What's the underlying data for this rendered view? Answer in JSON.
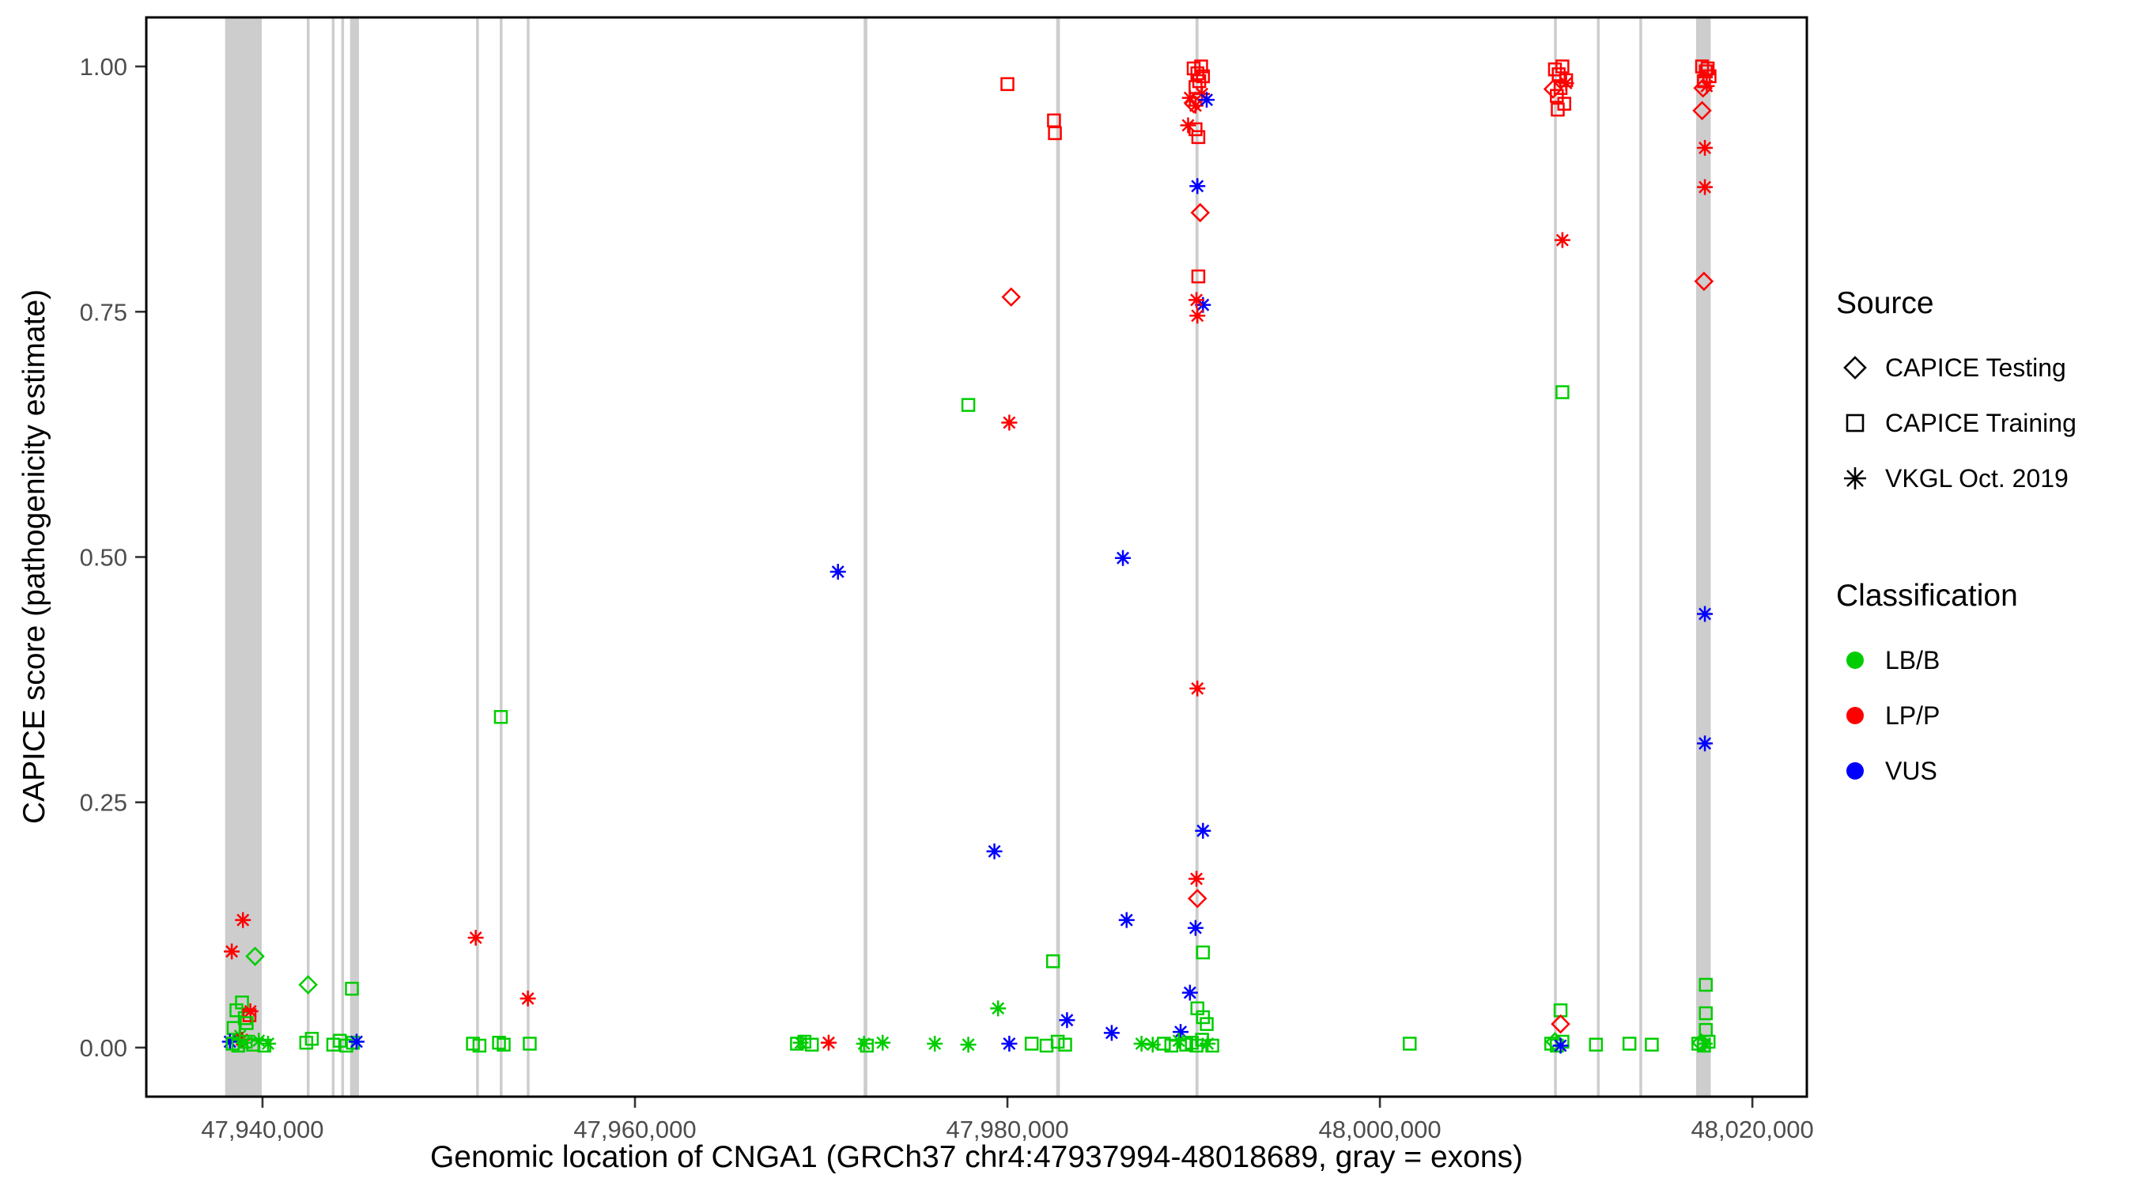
{
  "legend": {
    "source_title": "Source",
    "source_items": [
      {
        "label": "CAPICE Testing",
        "marker": "diamond"
      },
      {
        "label": "CAPICE Training",
        "marker": "square"
      },
      {
        "label": "VKGL Oct. 2019",
        "marker": "asterisk"
      }
    ],
    "classification_title": "Classification",
    "classification_items": [
      {
        "label": "LB/B",
        "color": "#00CD00"
      },
      {
        "label": "LP/P",
        "color": "#FF0000"
      },
      {
        "label": "VUS",
        "color": "#0000FF"
      }
    ]
  },
  "chart_data": {
    "type": "scatter",
    "xlabel": "Genomic location of CNGA1 (GRCh37 chr4:47937994-48018689, gray = exons)",
    "ylabel": "CAPICE score (pathogenicity estimate)",
    "xlim": [
      47933760,
      48022925
    ],
    "ylim": [
      -0.05,
      1.05
    ],
    "grid": false,
    "legend_position": "right",
    "x_ticks": [
      {
        "value": 47940000,
        "label": "47,940,000"
      },
      {
        "value": 47960000,
        "label": "47,960,000"
      },
      {
        "value": 47980000,
        "label": "47,980,000"
      },
      {
        "value": 48000000,
        "label": "48,000,000"
      },
      {
        "value": 48020000,
        "label": "48,020,000"
      }
    ],
    "y_ticks": [
      {
        "value": 0.0,
        "label": "0.00"
      },
      {
        "value": 0.25,
        "label": "0.25"
      },
      {
        "value": 0.5,
        "label": "0.50"
      },
      {
        "value": 0.75,
        "label": "0.75"
      },
      {
        "value": 1.0,
        "label": "1.00"
      }
    ],
    "exon_color": "#CDCDCD",
    "exons": [
      [
        47937994,
        47939960
      ],
      [
        47942380,
        47942530
      ],
      [
        47943720,
        47943870
      ],
      [
        47944230,
        47944380
      ],
      [
        47944700,
        47945180
      ],
      [
        47951470,
        47951620
      ],
      [
        47952740,
        47952890
      ],
      [
        47954190,
        47954340
      ],
      [
        47972280,
        47972480
      ],
      [
        47982620,
        47982820
      ],
      [
        47990100,
        47990260
      ],
      [
        48009350,
        48009500
      ],
      [
        48011650,
        48011800
      ],
      [
        48013930,
        48014080
      ],
      [
        48016980,
        48017760
      ]
    ],
    "classification_colors": {
      "LB/B": "#00CD00",
      "LP/P": "#FF0000",
      "VUS": "#0000FF"
    },
    "source_markers": {
      "test": "diamond",
      "train": "square",
      "vkgl": "asterisk"
    },
    "source_labels": {
      "test": "CAPICE Testing",
      "train": "CAPICE Training",
      "vkgl": "VKGL Oct. 2019"
    },
    "points": [
      [
        47938950,
        0.13,
        "vkgl",
        "LP/P"
      ],
      [
        47938350,
        0.098,
        "vkgl",
        "LP/P"
      ],
      [
        47939600,
        0.093,
        "test",
        "LB/B"
      ],
      [
        47942450,
        0.064,
        "test",
        "LB/B"
      ],
      [
        47944800,
        0.06,
        "train",
        "LB/B"
      ],
      [
        47938900,
        0.046,
        "train",
        "LB/B"
      ],
      [
        47938600,
        0.038,
        "train",
        "LB/B"
      ],
      [
        47939050,
        0.03,
        "train",
        "LB/B"
      ],
      [
        47939350,
        0.037,
        "vkgl",
        "LP/P"
      ],
      [
        47939300,
        0.033,
        "train",
        "LP/P"
      ],
      [
        47939150,
        0.025,
        "train",
        "LB/B"
      ],
      [
        47938450,
        0.02,
        "train",
        "LB/B"
      ],
      [
        47938800,
        0.012,
        "vkgl",
        "LB/B"
      ],
      [
        47938250,
        0.006,
        "vkgl",
        "VUS"
      ],
      [
        47938900,
        0.008,
        "vkgl",
        "LP/P"
      ],
      [
        47938400,
        0.004,
        "train",
        "LB/B"
      ],
      [
        47938700,
        0.002,
        "train",
        "LB/B"
      ],
      [
        47939100,
        0.006,
        "train",
        "LB/B"
      ],
      [
        47939500,
        0.003,
        "train",
        "LB/B"
      ],
      [
        47939800,
        0.007,
        "vkgl",
        "LB/B"
      ],
      [
        47940100,
        0.002,
        "train",
        "LB/B"
      ],
      [
        47939000,
        0.005,
        "vkgl",
        "LB/B"
      ],
      [
        47940300,
        0.004,
        "vkgl",
        "LB/B"
      ],
      [
        47942350,
        0.005,
        "train",
        "LB/B"
      ],
      [
        47942650,
        0.009,
        "train",
        "LB/B"
      ],
      [
        47943800,
        0.003,
        "train",
        "LB/B"
      ],
      [
        47944150,
        0.007,
        "train",
        "LB/B"
      ],
      [
        47944500,
        0.002,
        "train",
        "LB/B"
      ],
      [
        47944850,
        0.005,
        "train",
        "LB/B"
      ],
      [
        47945050,
        0.006,
        "vkgl",
        "VUS"
      ],
      [
        47951450,
        0.112,
        "vkgl",
        "LP/P"
      ],
      [
        47952800,
        0.337,
        "train",
        "LB/B"
      ],
      [
        47954250,
        0.05,
        "vkgl",
        "LP/P"
      ],
      [
        47951300,
        0.004,
        "train",
        "LB/B"
      ],
      [
        47951650,
        0.002,
        "train",
        "LB/B"
      ],
      [
        47952700,
        0.005,
        "train",
        "LB/B"
      ],
      [
        47952950,
        0.003,
        "train",
        "LB/B"
      ],
      [
        47954350,
        0.004,
        "train",
        "LB/B"
      ],
      [
        47968700,
        0.004,
        "train",
        "LB/B"
      ],
      [
        47968900,
        0.005,
        "vkgl",
        "LB/B"
      ],
      [
        47969100,
        0.006,
        "train",
        "LB/B"
      ],
      [
        47969500,
        0.003,
        "train",
        "LB/B"
      ],
      [
        47970400,
        0.005,
        "vkgl",
        "LP/P"
      ],
      [
        47970900,
        0.485,
        "vkgl",
        "VUS"
      ],
      [
        47972300,
        0.004,
        "vkgl",
        "LB/B"
      ],
      [
        47972450,
        0.002,
        "train",
        "LB/B"
      ],
      [
        47973300,
        0.005,
        "vkgl",
        "LB/B"
      ],
      [
        47976100,
        0.004,
        "vkgl",
        "LB/B"
      ],
      [
        47977900,
        0.003,
        "vkgl",
        "LB/B"
      ],
      [
        47977900,
        0.655,
        "train",
        "LB/B"
      ],
      [
        47980100,
        0.637,
        "vkgl",
        "LP/P"
      ],
      [
        47980000,
        0.982,
        "train",
        "LP/P"
      ],
      [
        47980200,
        0.765,
        "test",
        "LP/P"
      ],
      [
        47979300,
        0.2,
        "vkgl",
        "VUS"
      ],
      [
        47979500,
        0.04,
        "vkgl",
        "LB/B"
      ],
      [
        47980100,
        0.004,
        "vkgl",
        "VUS"
      ],
      [
        47982500,
        0.945,
        "train",
        "LP/P"
      ],
      [
        47982550,
        0.932,
        "train",
        "LP/P"
      ],
      [
        47982450,
        0.088,
        "train",
        "LB/B"
      ],
      [
        47983200,
        0.028,
        "vkgl",
        "VUS"
      ],
      [
        47981300,
        0.004,
        "train",
        "LB/B"
      ],
      [
        47982100,
        0.002,
        "train",
        "LB/B"
      ],
      [
        47982700,
        0.006,
        "train",
        "LB/B"
      ],
      [
        47983100,
        0.003,
        "train",
        "LB/B"
      ],
      [
        47986200,
        0.499,
        "vkgl",
        "VUS"
      ],
      [
        47986400,
        0.13,
        "vkgl",
        "VUS"
      ],
      [
        47985600,
        0.015,
        "vkgl",
        "VUS"
      ],
      [
        47987200,
        0.004,
        "vkgl",
        "LB/B"
      ],
      [
        47987800,
        0.003,
        "vkgl",
        "LB/B"
      ],
      [
        47990000,
        0.998,
        "train",
        "LP/P"
      ],
      [
        47990200,
        0.993,
        "train",
        "LP/P"
      ],
      [
        47990400,
        1.0,
        "train",
        "LP/P"
      ],
      [
        47990300,
        0.985,
        "train",
        "LP/P"
      ],
      [
        47990100,
        0.979,
        "train",
        "LP/P"
      ],
      [
        47990500,
        0.99,
        "train",
        "LP/P"
      ],
      [
        47989800,
        0.968,
        "vkgl",
        "LP/P"
      ],
      [
        47990100,
        0.96,
        "vkgl",
        "LP/P"
      ],
      [
        47990450,
        0.972,
        "vkgl",
        "LP/P"
      ],
      [
        47990000,
        0.962,
        "test",
        "LP/P"
      ],
      [
        47990700,
        0.966,
        "vkgl",
        "VUS"
      ],
      [
        47989700,
        0.94,
        "vkgl",
        "LP/P"
      ],
      [
        47990100,
        0.936,
        "train",
        "LP/P"
      ],
      [
        47990250,
        0.928,
        "train",
        "LP/P"
      ],
      [
        47990200,
        0.878,
        "vkgl",
        "VUS"
      ],
      [
        47990350,
        0.851,
        "test",
        "LP/P"
      ],
      [
        47990250,
        0.786,
        "train",
        "LP/P"
      ],
      [
        47990500,
        0.757,
        "vkgl",
        "VUS"
      ],
      [
        47990150,
        0.762,
        "vkgl",
        "LP/P"
      ],
      [
        47990200,
        0.746,
        "vkgl",
        "LP/P"
      ],
      [
        47990200,
        0.366,
        "vkgl",
        "LP/P"
      ],
      [
        47990500,
        0.221,
        "vkgl",
        "VUS"
      ],
      [
        47990150,
        0.172,
        "vkgl",
        "LP/P"
      ],
      [
        47990200,
        0.152,
        "test",
        "LP/P"
      ],
      [
        47990100,
        0.122,
        "vkgl",
        "VUS"
      ],
      [
        47990500,
        0.097,
        "train",
        "LB/B"
      ],
      [
        47989800,
        0.056,
        "vkgl",
        "VUS"
      ],
      [
        47990200,
        0.04,
        "train",
        "LB/B"
      ],
      [
        47990500,
        0.031,
        "train",
        "LB/B"
      ],
      [
        47990700,
        0.024,
        "train",
        "LB/B"
      ],
      [
        47989300,
        0.016,
        "vkgl",
        "VUS"
      ],
      [
        47988400,
        0.004,
        "train",
        "LB/B"
      ],
      [
        47988800,
        0.002,
        "train",
        "LB/B"
      ],
      [
        47989200,
        0.007,
        "vkgl",
        "LB/B"
      ],
      [
        47989600,
        0.003,
        "train",
        "LB/B"
      ],
      [
        47989900,
        0.005,
        "train",
        "LB/B"
      ],
      [
        47990150,
        0.002,
        "train",
        "LB/B"
      ],
      [
        47990450,
        0.008,
        "train",
        "LB/B"
      ],
      [
        47990750,
        0.004,
        "vkgl",
        "LB/B"
      ],
      [
        47991000,
        0.002,
        "train",
        "LB/B"
      ],
      [
        48001600,
        0.004,
        "train",
        "LB/B"
      ],
      [
        48009400,
        0.997,
        "train",
        "LP/P"
      ],
      [
        48009600,
        0.992,
        "train",
        "LP/P"
      ],
      [
        48009800,
        1.0,
        "train",
        "LP/P"
      ],
      [
        48010000,
        0.986,
        "train",
        "LP/P"
      ],
      [
        48009700,
        0.978,
        "train",
        "LP/P"
      ],
      [
        48009500,
        0.97,
        "train",
        "LP/P"
      ],
      [
        48009900,
        0.962,
        "train",
        "LP/P"
      ],
      [
        48009300,
        0.977,
        "test",
        "LP/P"
      ],
      [
        48010000,
        0.983,
        "vkgl",
        "LP/P"
      ],
      [
        48009550,
        0.956,
        "train",
        "LP/P"
      ],
      [
        48009800,
        0.823,
        "vkgl",
        "LP/P"
      ],
      [
        48009800,
        0.668,
        "train",
        "LB/B"
      ],
      [
        48009700,
        0.038,
        "train",
        "LB/B"
      ],
      [
        48009700,
        0.024,
        "test",
        "LP/P"
      ],
      [
        48009200,
        0.004,
        "train",
        "LB/B"
      ],
      [
        48009500,
        0.002,
        "train",
        "LB/B"
      ],
      [
        48009800,
        0.006,
        "train",
        "LB/B"
      ],
      [
        48009400,
        0.006,
        "test",
        "LB/B"
      ],
      [
        48009700,
        0.002,
        "vkgl",
        "VUS"
      ],
      [
        48011600,
        0.003,
        "train",
        "LB/B"
      ],
      [
        48013400,
        0.004,
        "train",
        "LB/B"
      ],
      [
        48014600,
        0.003,
        "train",
        "LB/B"
      ],
      [
        48017300,
        1.0,
        "train",
        "LP/P"
      ],
      [
        48017500,
        0.995,
        "train",
        "LP/P"
      ],
      [
        48017700,
        0.99,
        "train",
        "LP/P"
      ],
      [
        48017400,
        0.985,
        "train",
        "LP/P"
      ],
      [
        48017600,
        0.998,
        "train",
        "LP/P"
      ],
      [
        48017350,
        0.978,
        "test",
        "LP/P"
      ],
      [
        48017550,
        0.98,
        "vkgl",
        "LP/P"
      ],
      [
        48017300,
        0.955,
        "test",
        "LP/P"
      ],
      [
        48017450,
        0.917,
        "vkgl",
        "LP/P"
      ],
      [
        48017450,
        0.877,
        "vkgl",
        "LP/P"
      ],
      [
        48017400,
        0.781,
        "test",
        "LP/P"
      ],
      [
        48017450,
        0.442,
        "vkgl",
        "VUS"
      ],
      [
        48017450,
        0.31,
        "vkgl",
        "VUS"
      ],
      [
        48017500,
        0.064,
        "train",
        "LB/B"
      ],
      [
        48017500,
        0.035,
        "train",
        "LB/B"
      ],
      [
        48017500,
        0.018,
        "train",
        "LB/B"
      ],
      [
        48017100,
        0.004,
        "train",
        "LB/B"
      ],
      [
        48017400,
        0.002,
        "train",
        "LB/B"
      ],
      [
        48017650,
        0.006,
        "train",
        "LB/B"
      ],
      [
        48017450,
        0.004,
        "vkgl",
        "LB/B"
      ],
      [
        48017250,
        0.005,
        "test",
        "LB/B"
      ]
    ]
  }
}
